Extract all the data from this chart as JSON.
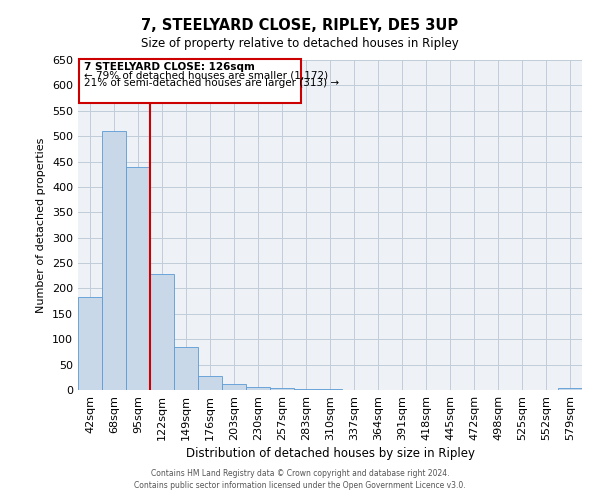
{
  "title": "7, STEELYARD CLOSE, RIPLEY, DE5 3UP",
  "subtitle": "Size of property relative to detached houses in Ripley",
  "xlabel": "Distribution of detached houses by size in Ripley",
  "ylabel": "Number of detached properties",
  "bin_labels": [
    "42sqm",
    "68sqm",
    "95sqm",
    "122sqm",
    "149sqm",
    "176sqm",
    "203sqm",
    "230sqm",
    "257sqm",
    "283sqm",
    "310sqm",
    "337sqm",
    "364sqm",
    "391sqm",
    "418sqm",
    "445sqm",
    "472sqm",
    "498sqm",
    "525sqm",
    "552sqm",
    "579sqm"
  ],
  "bar_heights": [
    183,
    510,
    440,
    228,
    85,
    28,
    12,
    5,
    4,
    1,
    1,
    0,
    0,
    0,
    0,
    0,
    0,
    0,
    0,
    0,
    4
  ],
  "bar_color": "#c8d8e8",
  "bar_edge_color": "#5b9bd5",
  "vline_x": 3,
  "vline_color": "#cc0000",
  "annotation_title": "7 STEELYARD CLOSE: 126sqm",
  "annotation_line1": "← 79% of detached houses are smaller (1,172)",
  "annotation_line2": "21% of semi-detached houses are larger (313) →",
  "annotation_box_color": "#cc0000",
  "ylim": [
    0,
    650
  ],
  "yticks": [
    0,
    50,
    100,
    150,
    200,
    250,
    300,
    350,
    400,
    450,
    500,
    550,
    600,
    650
  ],
  "footer1": "Contains HM Land Registry data © Crown copyright and database right 2024.",
  "footer2": "Contains public sector information licensed under the Open Government Licence v3.0.",
  "bg_color": "#eef2f7",
  "grid_color": "#c0ccd8"
}
